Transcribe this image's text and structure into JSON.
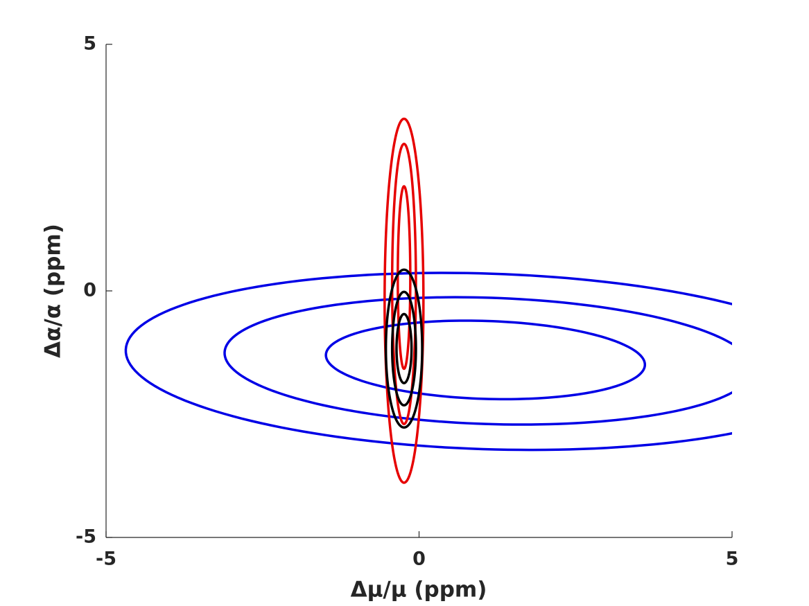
{
  "chart_data": {
    "type": "ellipse",
    "xlabel": "Δμ/μ (ppm)",
    "ylabel": "Δα/α (ppm)",
    "xlim": [
      -5,
      5
    ],
    "ylim": [
      -5,
      5
    ],
    "xticks": [
      -5,
      0,
      5
    ],
    "yticks": [
      -5,
      0,
      5
    ],
    "grid": false,
    "series": [
      {
        "color": "#0000e6",
        "ellipses": [
          {
            "cx": 1.06,
            "cy": -1.4,
            "rx": 2.55,
            "ry": 0.79,
            "angle": -2.4
          },
          {
            "cx": 1.11,
            "cy": -1.42,
            "rx": 4.22,
            "ry": 1.28,
            "angle": -2.4
          },
          {
            "cx": 1.09,
            "cy": -1.43,
            "rx": 5.78,
            "ry": 1.78,
            "angle": -2.4
          }
        ]
      },
      {
        "color": "#e60000",
        "ellipses": [
          {
            "cx": -0.24,
            "cy": 0.27,
            "rx": 0.1,
            "ry": 1.85,
            "angle": 0
          },
          {
            "cx": -0.24,
            "cy": 0.14,
            "rx": 0.19,
            "ry": 2.84,
            "angle": 0
          },
          {
            "cx": -0.24,
            "cy": -0.2,
            "rx": 0.31,
            "ry": 3.69,
            "angle": 0
          }
        ]
      },
      {
        "color": "#000000",
        "ellipses": [
          {
            "cx": -0.24,
            "cy": -1.17,
            "rx": 0.12,
            "ry": 0.7,
            "angle": 0
          },
          {
            "cx": -0.24,
            "cy": -1.17,
            "rx": 0.19,
            "ry": 1.15,
            "angle": 0
          },
          {
            "cx": -0.24,
            "cy": -1.17,
            "rx": 0.29,
            "ry": 1.6,
            "angle": 0
          }
        ]
      }
    ]
  }
}
